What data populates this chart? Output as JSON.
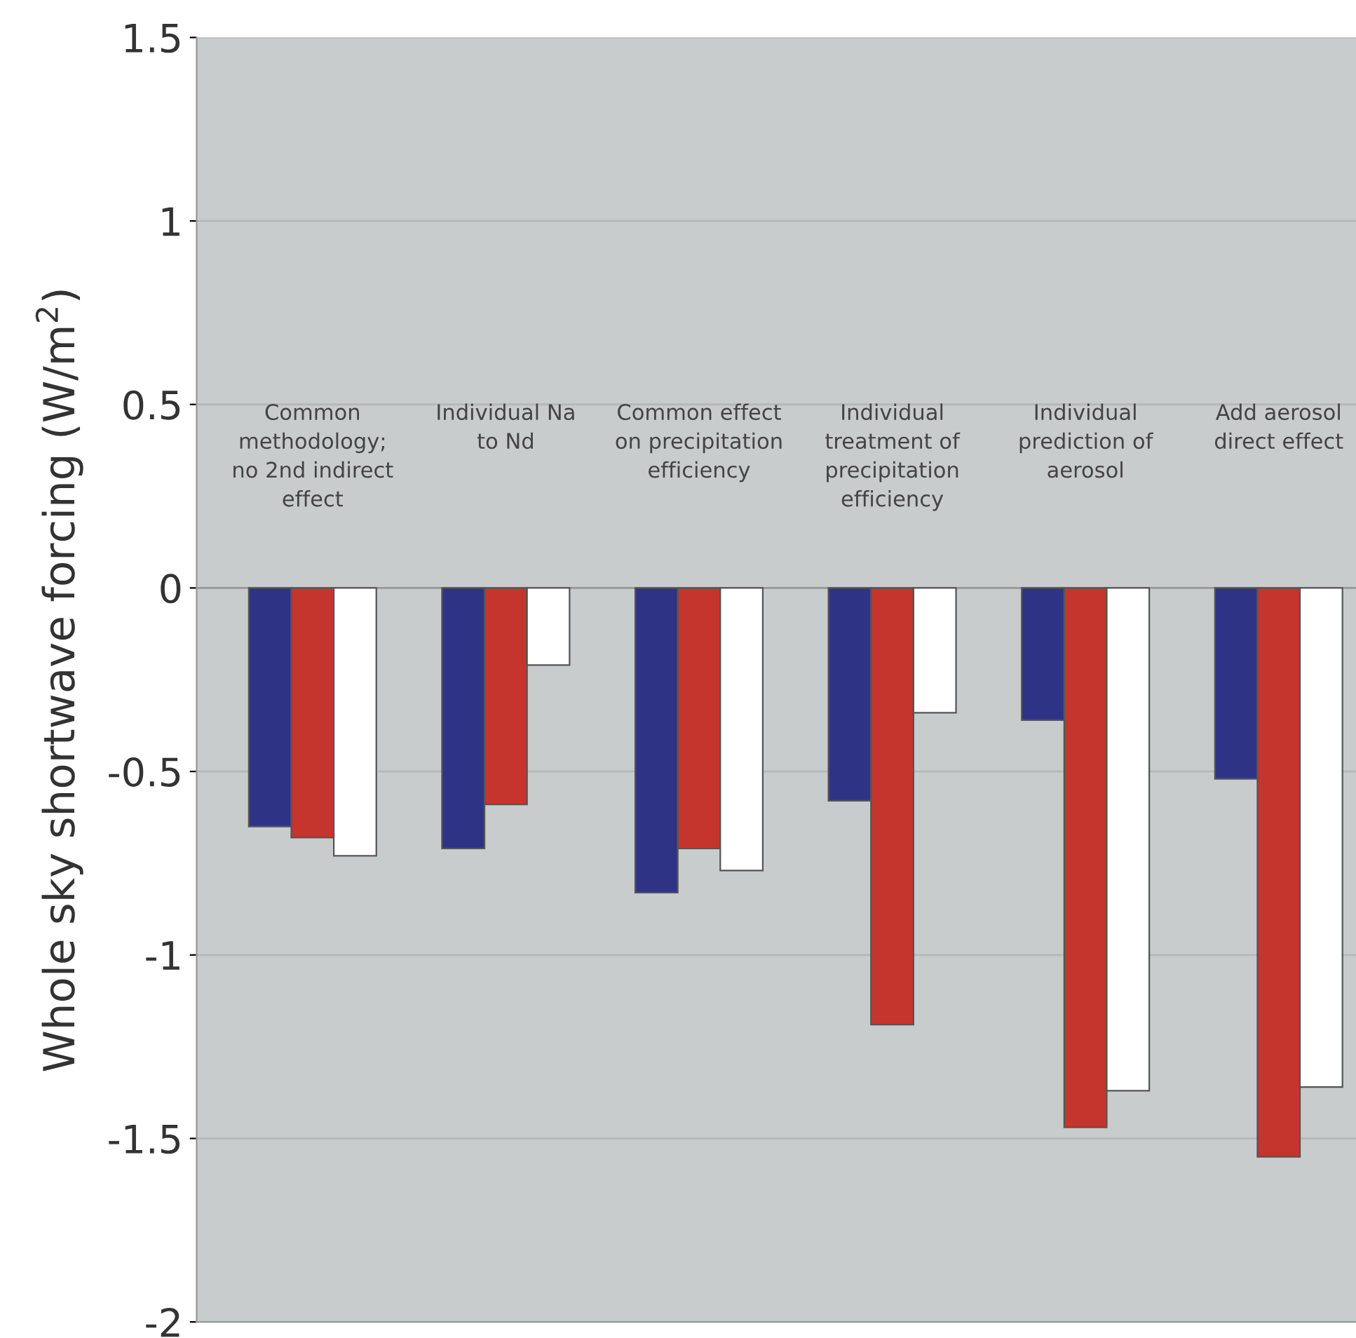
{
  "chart_data": {
    "type": "bar",
    "ylabel": "Whole sky shortwave forcing (W/m$^{2}$)",
    "categories": [
      "Common\nmethodology;\nno 2nd indirect\neffect",
      "Individual Na\nto Nd",
      "Common effect\non precipitation\nefficiency",
      "Individual\ntreatment of\nprecipitation\nefficiency",
      "Individual\nprediction of\naerosol",
      "Add aerosol\ndirect effect"
    ],
    "series": [
      {
        "color": "#2e3386",
        "values": [
          -0.65,
          -0.71,
          -0.83,
          -0.58,
          -0.36,
          -0.52
        ]
      },
      {
        "color": "#c5352e",
        "values": [
          -0.68,
          -0.59,
          -0.71,
          -1.19,
          -1.47,
          -1.55
        ]
      },
      {
        "color": "#ffffff",
        "values": [
          -0.73,
          -0.21,
          -0.77,
          -0.34,
          -1.37,
          -1.36
        ]
      }
    ],
    "ylim": [
      -2,
      1.5
    ],
    "yticks": [
      -2,
      -1.5,
      -1,
      -0.5,
      0,
      0.5,
      1,
      1.5
    ],
    "grid": "y"
  }
}
